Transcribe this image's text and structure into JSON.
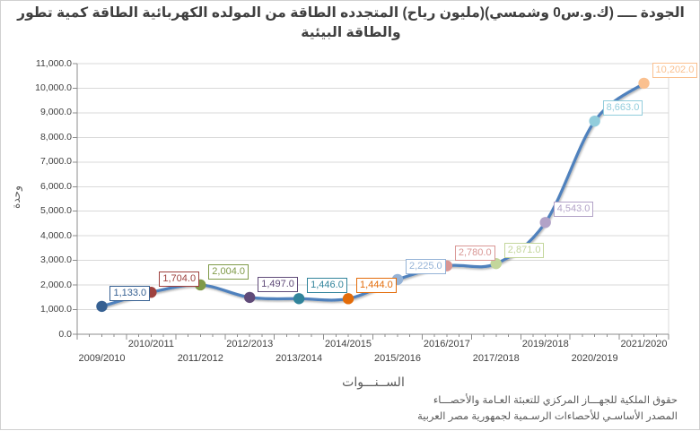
{
  "title": {
    "line1": "الجودة ــــ (ك.و.س0 وشمسي)(مليون رياح) المتجدده الطاقة من المولده الكهربائية الطاقة كمية تطور",
    "line2": "والطاقة البيئية"
  },
  "chart_data": {
    "type": "line",
    "title": "الجودة ــــ (ك.و.س0 وشمسي)(مليون رياح) المتجدده الطاقة من المولده الكهربائية الطاقة كمية تطور والطاقة البيئية",
    "xlabel": "الســنـــوات",
    "ylabel": "وحدة",
    "categories": [
      "2009/2010",
      "2010/2011",
      "2011/2012",
      "2012/2013",
      "2013/2014",
      "2014/2015",
      "2015/2016",
      "2016/2017",
      "2017/2018",
      "2019/2018",
      "2020/2019",
      "2021/2020"
    ],
    "values": [
      1133,
      1704,
      2004,
      1497,
      1446,
      1444,
      2225,
      2780,
      2871,
      4543,
      8663,
      10202
    ],
    "labels": [
      "1,133.0",
      "1,704.0",
      "2,004.0",
      "1,497.0",
      "1,446.0",
      "1,444.0",
      "2,225.0",
      "2,780.0",
      "2,871.0",
      "4,543.0",
      "8,663.0",
      "10,202.0"
    ],
    "point_colors": [
      "#366092",
      "#9E413E",
      "#7F9A48",
      "#5F4A78",
      "#31849B",
      "#E36C0A",
      "#95B3D7",
      "#D99694",
      "#C3D69B",
      "#B2A2C7",
      "#92CDDC",
      "#FAC08F"
    ],
    "line_color": "#4F81BD",
    "ylim": [
      0,
      11000
    ],
    "ytick_step": 1000,
    "ytick_labels": [
      "0.0",
      "1,000.0",
      "2,000.0",
      "3,000.0",
      "4,000.0",
      "5,000.0",
      "6,000.0",
      "7,000.0",
      "8,000.0",
      "9,000.0",
      "10,000.0",
      "11,000.0"
    ],
    "grid": true,
    "legend": "none"
  },
  "colors": {
    "grid": "#D9D9D9",
    "axis": "#8C8C8C",
    "tick_text": "#404040",
    "muted_text": "#595959",
    "title_text": "#3F3F3F",
    "background": "#FFFFFF"
  },
  "footer": {
    "line1": "حقوق الملكية للجهـــاز المركزي للتعبئة العـامة والأحصـــاء",
    "line2": "المصدر الأساسـي للأحصاءات الرسـمية لجمهورية مصر العربية"
  }
}
